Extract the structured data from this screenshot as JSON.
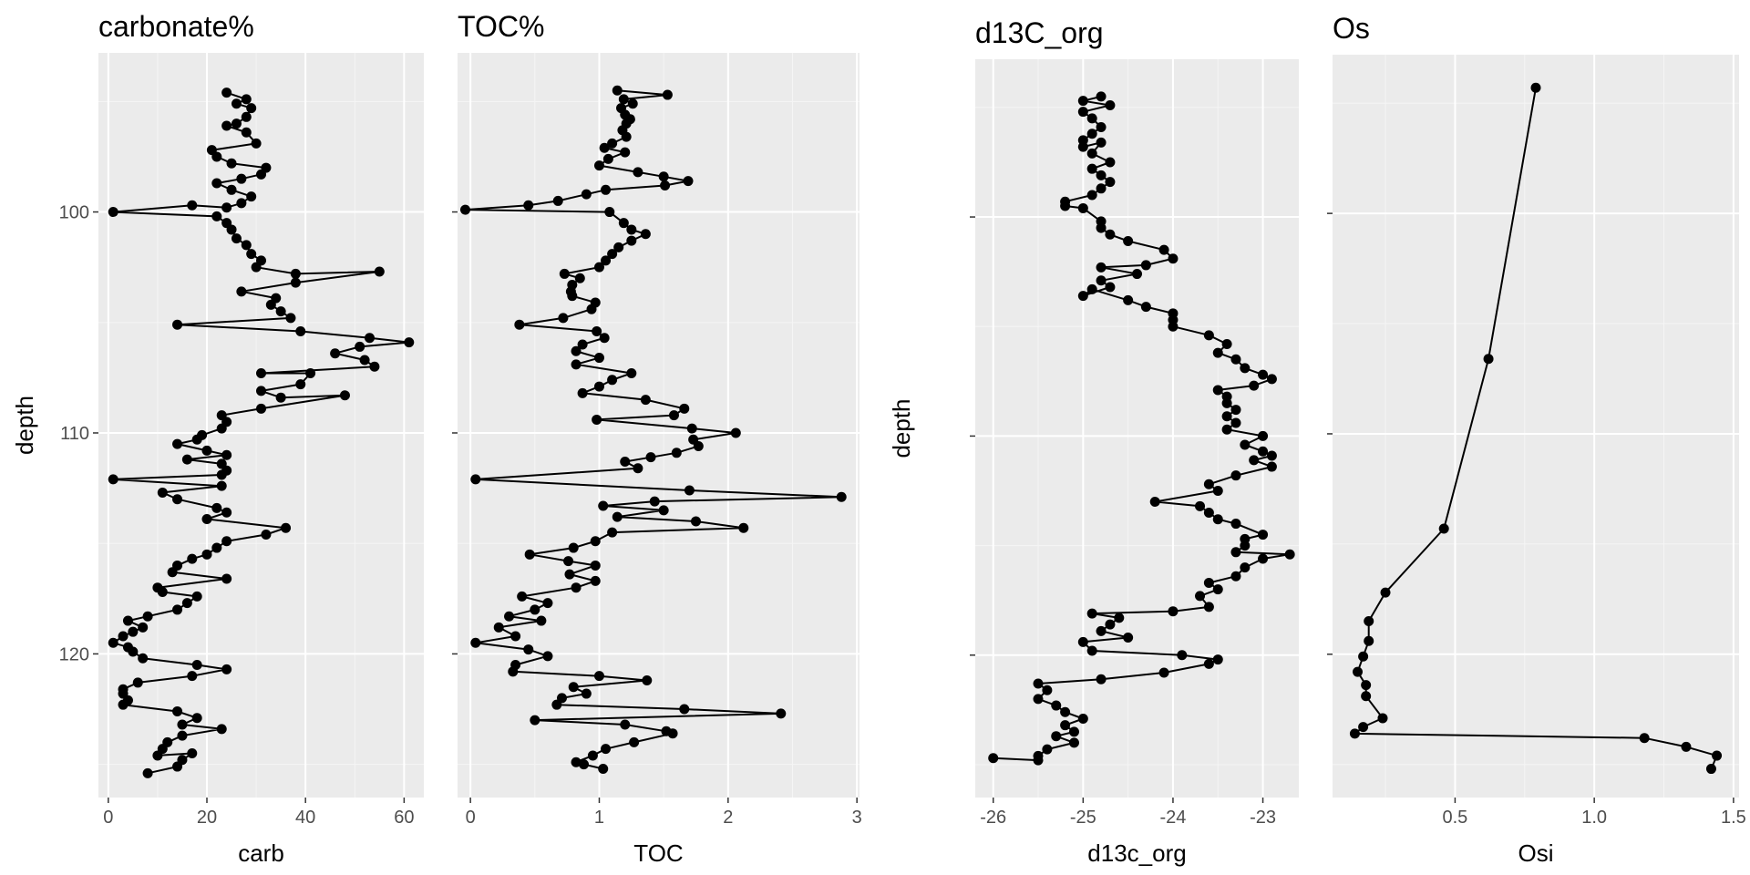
{
  "chart_data": [
    {
      "type": "line",
      "title": "carbonate%",
      "xlabel": "carb",
      "ylabel": "depth",
      "xlim": [
        -2,
        64
      ],
      "ylim": [
        126.5,
        92.8
      ],
      "x_ticks": [
        0,
        20,
        40,
        60
      ],
      "y_ticks": [
        100,
        110,
        120
      ],
      "grid": true,
      "points": [
        [
          24,
          94.6
        ],
        [
          28,
          94.9
        ],
        [
          26,
          95.1
        ],
        [
          29,
          95.3
        ],
        [
          28,
          95.7
        ],
        [
          26,
          96.0
        ],
        [
          24,
          96.1
        ],
        [
          28,
          96.4
        ],
        [
          30,
          96.9
        ],
        [
          21,
          97.2
        ],
        [
          22,
          97.5
        ],
        [
          25,
          97.8
        ],
        [
          32,
          98.0
        ],
        [
          31,
          98.3
        ],
        [
          27,
          98.5
        ],
        [
          22,
          98.7
        ],
        [
          25,
          99.0
        ],
        [
          29,
          99.3
        ],
        [
          27,
          99.6
        ],
        [
          24,
          99.8
        ],
        [
          17,
          99.7
        ],
        [
          1,
          100.0
        ],
        [
          22,
          100.2
        ],
        [
          24,
          100.5
        ],
        [
          25,
          100.8
        ],
        [
          26,
          101.2
        ],
        [
          28,
          101.5
        ],
        [
          29,
          101.9
        ],
        [
          31,
          102.2
        ],
        [
          30,
          102.5
        ],
        [
          38,
          102.8
        ],
        [
          55,
          102.7
        ],
        [
          38,
          103.2
        ],
        [
          27,
          103.6
        ],
        [
          34,
          103.9
        ],
        [
          33,
          104.2
        ],
        [
          35,
          104.5
        ],
        [
          37,
          104.8
        ],
        [
          14,
          105.1
        ],
        [
          39,
          105.4
        ],
        [
          53,
          105.7
        ],
        [
          61,
          105.9
        ],
        [
          51,
          106.1
        ],
        [
          46,
          106.4
        ],
        [
          52,
          106.7
        ],
        [
          54,
          107.0
        ],
        [
          31,
          107.3
        ],
        [
          41,
          107.3
        ],
        [
          39,
          107.8
        ],
        [
          31,
          108.1
        ],
        [
          35,
          108.4
        ],
        [
          48,
          108.3
        ],
        [
          31,
          108.9
        ],
        [
          23,
          109.2
        ],
        [
          24,
          109.5
        ],
        [
          23,
          109.8
        ],
        [
          19,
          110.1
        ],
        [
          18,
          110.3
        ],
        [
          14,
          110.5
        ],
        [
          20,
          110.8
        ],
        [
          24,
          111.0
        ],
        [
          16,
          111.2
        ],
        [
          23,
          111.4
        ],
        [
          24,
          111.7
        ],
        [
          23,
          111.9
        ],
        [
          1,
          112.1
        ],
        [
          23,
          112.4
        ],
        [
          11,
          112.7
        ],
        [
          14,
          113.0
        ],
        [
          22,
          113.4
        ],
        [
          24,
          113.6
        ],
        [
          20,
          113.9
        ],
        [
          36,
          114.3
        ],
        [
          32,
          114.6
        ],
        [
          24,
          114.9
        ],
        [
          22,
          115.2
        ],
        [
          20,
          115.5
        ],
        [
          17,
          115.7
        ],
        [
          14,
          116.0
        ],
        [
          13,
          116.3
        ],
        [
          24,
          116.6
        ],
        [
          10,
          117.0
        ],
        [
          11,
          117.2
        ],
        [
          18,
          117.4
        ],
        [
          16,
          117.7
        ],
        [
          14,
          118.0
        ],
        [
          8,
          118.3
        ],
        [
          4,
          118.5
        ],
        [
          7,
          118.8
        ],
        [
          5,
          119.0
        ],
        [
          3,
          119.2
        ],
        [
          1,
          119.5
        ],
        [
          4,
          119.7
        ],
        [
          5,
          119.9
        ],
        [
          7,
          120.2
        ],
        [
          18,
          120.5
        ],
        [
          24,
          120.7
        ],
        [
          17,
          121.0
        ],
        [
          6,
          121.3
        ],
        [
          3,
          121.6
        ],
        [
          3,
          121.8
        ],
        [
          4,
          122.1
        ],
        [
          3,
          122.3
        ],
        [
          14,
          122.6
        ],
        [
          18,
          122.9
        ],
        [
          15,
          123.2
        ],
        [
          23,
          123.4
        ],
        [
          15,
          123.7
        ],
        [
          12,
          124.0
        ],
        [
          11,
          124.3
        ],
        [
          10,
          124.6
        ],
        [
          17,
          124.5
        ],
        [
          15,
          124.8
        ],
        [
          14,
          125.1
        ],
        [
          8,
          125.4
        ]
      ]
    },
    {
      "type": "line",
      "title": "TOC%",
      "xlabel": "TOC",
      "ylabel": "",
      "xlim": [
        -0.1,
        3.02
      ],
      "ylim": [
        126.5,
        92.8
      ],
      "x_ticks": [
        0,
        1,
        2,
        3
      ],
      "grid": true,
      "points": [
        [
          1.14,
          94.5
        ],
        [
          1.53,
          94.7
        ],
        [
          1.19,
          94.9
        ],
        [
          1.26,
          95.1
        ],
        [
          1.17,
          95.3
        ],
        [
          1.2,
          95.6
        ],
        [
          1.24,
          95.8
        ],
        [
          1.21,
          96.0
        ],
        [
          1.18,
          96.3
        ],
        [
          1.21,
          96.6
        ],
        [
          1.1,
          96.9
        ],
        [
          1.04,
          97.1
        ],
        [
          1.2,
          97.3
        ],
        [
          1.07,
          97.6
        ],
        [
          1.0,
          97.9
        ],
        [
          1.3,
          98.2
        ],
        [
          1.5,
          98.4
        ],
        [
          1.69,
          98.6
        ],
        [
          1.51,
          98.8
        ],
        [
          1.05,
          99.0
        ],
        [
          0.9,
          99.2
        ],
        [
          0.68,
          99.5
        ],
        [
          0.45,
          99.7
        ],
        [
          -0.04,
          99.9
        ],
        [
          1.08,
          100.0
        ],
        [
          1.19,
          100.5
        ],
        [
          1.25,
          100.8
        ],
        [
          1.36,
          101.0
        ],
        [
          1.25,
          101.3
        ],
        [
          1.15,
          101.6
        ],
        [
          1.1,
          101.9
        ],
        [
          1.05,
          102.2
        ],
        [
          1.0,
          102.5
        ],
        [
          0.73,
          102.8
        ],
        [
          0.85,
          103.0
        ],
        [
          0.79,
          103.3
        ],
        [
          0.78,
          103.6
        ],
        [
          0.79,
          103.8
        ],
        [
          0.97,
          104.1
        ],
        [
          0.94,
          104.4
        ],
        [
          0.72,
          104.8
        ],
        [
          0.38,
          105.1
        ],
        [
          0.98,
          105.4
        ],
        [
          1.04,
          105.7
        ],
        [
          0.87,
          106.0
        ],
        [
          0.82,
          106.3
        ],
        [
          1.0,
          106.6
        ],
        [
          0.82,
          106.9
        ],
        [
          1.25,
          107.3
        ],
        [
          1.1,
          107.6
        ],
        [
          1.0,
          107.9
        ],
        [
          0.87,
          108.2
        ],
        [
          1.36,
          108.5
        ],
        [
          1.66,
          108.9
        ],
        [
          1.58,
          109.2
        ],
        [
          0.98,
          109.4
        ],
        [
          1.72,
          109.8
        ],
        [
          2.06,
          110.0
        ],
        [
          1.73,
          110.3
        ],
        [
          1.77,
          110.6
        ],
        [
          1.6,
          110.9
        ],
        [
          1.4,
          111.1
        ],
        [
          1.2,
          111.3
        ],
        [
          1.3,
          111.6
        ],
        [
          0.04,
          112.1
        ],
        [
          1.7,
          112.6
        ],
        [
          2.88,
          112.9
        ],
        [
          1.43,
          113.1
        ],
        [
          1.03,
          113.3
        ],
        [
          1.5,
          113.5
        ],
        [
          1.14,
          113.8
        ],
        [
          1.75,
          114.0
        ],
        [
          2.12,
          114.3
        ],
        [
          1.1,
          114.5
        ],
        [
          0.97,
          114.9
        ],
        [
          0.8,
          115.2
        ],
        [
          0.46,
          115.5
        ],
        [
          0.76,
          115.8
        ],
        [
          0.97,
          116.0
        ],
        [
          0.77,
          116.4
        ],
        [
          0.97,
          116.7
        ],
        [
          0.82,
          117.0
        ],
        [
          0.4,
          117.4
        ],
        [
          0.6,
          117.7
        ],
        [
          0.5,
          118.0
        ],
        [
          0.3,
          118.3
        ],
        [
          0.55,
          118.5
        ],
        [
          0.22,
          118.8
        ],
        [
          0.35,
          119.2
        ],
        [
          0.04,
          119.5
        ],
        [
          0.45,
          119.8
        ],
        [
          0.6,
          120.1
        ],
        [
          0.35,
          120.5
        ],
        [
          0.33,
          120.8
        ],
        [
          1.0,
          121.0
        ],
        [
          1.37,
          121.2
        ],
        [
          0.8,
          121.5
        ],
        [
          0.9,
          121.8
        ],
        [
          0.71,
          122.0
        ],
        [
          0.67,
          122.3
        ],
        [
          1.66,
          122.5
        ],
        [
          2.41,
          122.7
        ],
        [
          0.5,
          123.0
        ],
        [
          1.2,
          123.2
        ],
        [
          1.52,
          123.5
        ],
        [
          1.57,
          123.6
        ],
        [
          1.27,
          124.0
        ],
        [
          1.05,
          124.3
        ],
        [
          0.95,
          124.6
        ],
        [
          0.82,
          124.9
        ],
        [
          0.88,
          125.0
        ],
        [
          1.03,
          125.2
        ]
      ]
    },
    {
      "type": "line",
      "title": "d13C_org",
      "xlabel": "d13c_org",
      "ylabel": "depth",
      "xlim": [
        -26.2,
        -22.6
      ],
      "ylim": [
        126.5,
        92.8
      ],
      "x_ticks": [
        -26,
        -25,
        -24,
        -23
      ],
      "grid": true,
      "points": [
        [
          -24.8,
          94.5
        ],
        [
          -25.0,
          94.7
        ],
        [
          -24.7,
          94.9
        ],
        [
          -25.0,
          95.2
        ],
        [
          -24.9,
          95.5
        ],
        [
          -24.8,
          95.9
        ],
        [
          -24.9,
          96.2
        ],
        [
          -25.0,
          96.5
        ],
        [
          -25.0,
          96.8
        ],
        [
          -24.8,
          96.6
        ],
        [
          -24.9,
          97.1
        ],
        [
          -24.7,
          97.5
        ],
        [
          -24.9,
          97.8
        ],
        [
          -24.8,
          98.1
        ],
        [
          -24.7,
          98.4
        ],
        [
          -24.8,
          98.7
        ],
        [
          -24.9,
          99.0
        ],
        [
          -25.2,
          99.3
        ],
        [
          -25.2,
          99.5
        ],
        [
          -25.0,
          99.6
        ],
        [
          -24.8,
          100.2
        ],
        [
          -24.8,
          100.5
        ],
        [
          -24.7,
          100.8
        ],
        [
          -24.5,
          101.1
        ],
        [
          -24.1,
          101.5
        ],
        [
          -24.0,
          101.9
        ],
        [
          -24.3,
          102.2
        ],
        [
          -24.8,
          102.3
        ],
        [
          -24.4,
          102.6
        ],
        [
          -24.8,
          102.9
        ],
        [
          -24.7,
          103.2
        ],
        [
          -25.0,
          103.6
        ],
        [
          -24.9,
          103.3
        ],
        [
          -24.5,
          103.8
        ],
        [
          -24.3,
          104.1
        ],
        [
          -24.0,
          104.4
        ],
        [
          -24.0,
          104.7
        ],
        [
          -24.0,
          105.0
        ],
        [
          -23.6,
          105.4
        ],
        [
          -23.4,
          105.8
        ],
        [
          -23.5,
          106.2
        ],
        [
          -23.3,
          106.5
        ],
        [
          -23.2,
          106.9
        ],
        [
          -23.0,
          107.2
        ],
        [
          -22.9,
          107.4
        ],
        [
          -23.1,
          107.7
        ],
        [
          -23.5,
          107.9
        ],
        [
          -23.4,
          108.2
        ],
        [
          -23.4,
          108.5
        ],
        [
          -23.3,
          108.8
        ],
        [
          -23.4,
          109.1
        ],
        [
          -23.3,
          109.4
        ],
        [
          -23.4,
          109.7
        ],
        [
          -23.0,
          110.0
        ],
        [
          -23.2,
          110.4
        ],
        [
          -23.0,
          110.7
        ],
        [
          -22.9,
          110.9
        ],
        [
          -23.1,
          111.1
        ],
        [
          -22.9,
          111.4
        ],
        [
          -23.3,
          111.8
        ],
        [
          -23.6,
          112.2
        ],
        [
          -23.5,
          112.5
        ],
        [
          -24.2,
          113.0
        ],
        [
          -23.7,
          113.2
        ],
        [
          -23.6,
          113.5
        ],
        [
          -23.5,
          113.8
        ],
        [
          -23.3,
          114.0
        ],
        [
          -23.0,
          114.5
        ],
        [
          -23.2,
          114.7
        ],
        [
          -23.2,
          115.0
        ],
        [
          -23.3,
          115.3
        ],
        [
          -22.7,
          115.4
        ],
        [
          -23.0,
          115.6
        ],
        [
          -23.2,
          116.0
        ],
        [
          -23.3,
          116.4
        ],
        [
          -23.6,
          116.7
        ],
        [
          -23.5,
          117.0
        ],
        [
          -23.7,
          117.3
        ],
        [
          -23.6,
          117.8
        ],
        [
          -24.0,
          118.0
        ],
        [
          -24.9,
          118.1
        ],
        [
          -24.6,
          118.3
        ],
        [
          -24.7,
          118.6
        ],
        [
          -24.8,
          118.9
        ],
        [
          -24.5,
          119.2
        ],
        [
          -25.0,
          119.4
        ],
        [
          -24.9,
          119.8
        ],
        [
          -23.9,
          120.0
        ],
        [
          -23.5,
          120.2
        ],
        [
          -23.6,
          120.4
        ],
        [
          -24.1,
          120.8
        ],
        [
          -24.8,
          121.1
        ],
        [
          -25.5,
          121.3
        ],
        [
          -25.4,
          121.6
        ],
        [
          -25.5,
          122.0
        ],
        [
          -25.3,
          122.3
        ],
        [
          -25.2,
          122.6
        ],
        [
          -25.0,
          122.9
        ],
        [
          -25.2,
          123.2
        ],
        [
          -25.1,
          123.5
        ],
        [
          -25.3,
          123.7
        ],
        [
          -25.1,
          124.0
        ],
        [
          -25.4,
          124.3
        ],
        [
          -25.5,
          124.6
        ],
        [
          -25.5,
          124.8
        ],
        [
          -26.0,
          124.7
        ]
      ]
    },
    {
      "type": "line",
      "title": "Os",
      "xlabel": "Osi",
      "ylabel": "",
      "xlim": [
        0.06,
        1.52
      ],
      "ylim": [
        126.5,
        92.8
      ],
      "x_ticks": [
        0.5,
        1.0,
        1.5
      ],
      "grid": true,
      "points": [
        [
          0.79,
          94.3
        ],
        [
          0.62,
          106.6
        ],
        [
          0.46,
          114.3
        ],
        [
          0.25,
          117.2
        ],
        [
          0.19,
          118.5
        ],
        [
          0.19,
          119.4
        ],
        [
          0.17,
          120.1
        ],
        [
          0.15,
          120.8
        ],
        [
          0.18,
          121.4
        ],
        [
          0.18,
          121.9
        ],
        [
          0.24,
          122.9
        ],
        [
          0.17,
          123.3
        ],
        [
          0.14,
          123.6
        ],
        [
          1.18,
          123.8
        ],
        [
          1.33,
          124.2
        ],
        [
          1.44,
          124.6
        ],
        [
          1.42,
          125.2
        ]
      ]
    }
  ]
}
